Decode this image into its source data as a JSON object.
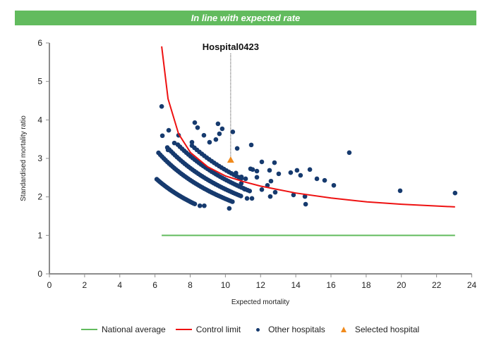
{
  "banner": {
    "text": "In line with expected rate"
  },
  "colors": {
    "banner": "#62bb5e",
    "national_average": "#62bb5e",
    "control_limit": "#ee1111",
    "other_hospitals": "#163a6e",
    "selected_hospital": "#f08a1c",
    "axis": "#8c8c8c"
  },
  "legend": {
    "national_average": "National average",
    "control_limit": "Control limit",
    "other_hospitals": "Other hospitals",
    "selected_hospital": "Selected hospital"
  },
  "chart_data": {
    "type": "scatter",
    "title": "In line with expected rate",
    "xlabel": "Expected mortality",
    "ylabel": "Standardised mortality ratio",
    "xlim": [
      0,
      24
    ],
    "ylim": [
      0,
      6
    ],
    "xticks": [
      0,
      2,
      4,
      6,
      8,
      10,
      12,
      14,
      16,
      18,
      20,
      22,
      24
    ],
    "yticks": [
      0,
      1,
      2,
      3,
      4,
      5,
      6
    ],
    "grid": false,
    "legend_position": "bottom",
    "selected_hospital": {
      "name": "Hospital0423",
      "x": 10.3,
      "y": 2.96
    },
    "national_average": {
      "y": 1,
      "x_range": [
        6.38,
        23.05
      ]
    },
    "control_limit": [
      [
        6.38,
        5.91
      ],
      [
        6.74,
        4.55
      ],
      [
        7.34,
        3.64
      ],
      [
        8.02,
        3.15
      ],
      [
        9.0,
        2.78
      ],
      [
        10.02,
        2.54
      ],
      [
        11.0,
        2.4
      ],
      [
        12.0,
        2.28
      ],
      [
        14.0,
        2.1
      ],
      [
        16.0,
        1.97
      ],
      [
        18.04,
        1.87
      ],
      [
        20.0,
        1.81
      ],
      [
        23.05,
        1.74
      ]
    ],
    "band_groups": [
      {
        "observed": 15,
        "e_from": 6.1,
        "e_to": 8.3,
        "step": 0.08
      },
      {
        "observed": 19.5,
        "e_from": 6.2,
        "e_to": 10.4,
        "step": 0.1
      },
      {
        "observed": 22,
        "e_from": 6.7,
        "e_to": 10.9,
        "step": 0.11
      },
      {
        "observed": 24.5,
        "e_from": 7.3,
        "e_to": 11.4,
        "step": 0.12
      },
      {
        "observed": 27,
        "e_from": 8.1,
        "e_to": 11.0,
        "step": 0.14
      }
    ],
    "other_hospitals": [
      [
        8.55,
        1.77
      ],
      [
        8.8,
        1.77
      ],
      [
        6.38,
        4.35
      ],
      [
        6.78,
        3.73
      ],
      [
        6.42,
        3.59
      ],
      [
        8.26,
        3.93
      ],
      [
        8.42,
        3.8
      ],
      [
        7.34,
        3.6
      ],
      [
        7.1,
        3.4
      ],
      [
        8.1,
        3.42
      ],
      [
        6.74,
        3.22
      ],
      [
        9.58,
        3.9
      ],
      [
        9.82,
        3.77
      ],
      [
        10.42,
        3.69
      ],
      [
        9.66,
        3.64
      ],
      [
        8.78,
        3.6
      ],
      [
        9.46,
        3.49
      ],
      [
        9.1,
        3.42
      ],
      [
        10.67,
        3.26
      ],
      [
        11.47,
        3.35
      ],
      [
        12.07,
        2.91
      ],
      [
        12.79,
        2.89
      ],
      [
        11.43,
        2.73
      ],
      [
        11.55,
        2.71
      ],
      [
        11.79,
        2.67
      ],
      [
        12.51,
        2.69
      ],
      [
        13.03,
        2.6
      ],
      [
        13.71,
        2.63
      ],
      [
        14.07,
        2.69
      ],
      [
        14.27,
        2.56
      ],
      [
        14.8,
        2.71
      ],
      [
        15.2,
        2.47
      ],
      [
        15.64,
        2.43
      ],
      [
        16.16,
        2.3
      ],
      [
        11.79,
        2.51
      ],
      [
        12.59,
        2.41
      ],
      [
        12.39,
        2.3
      ],
      [
        12.07,
        2.19
      ],
      [
        12.83,
        2.12
      ],
      [
        13.87,
        2.05
      ],
      [
        14.52,
        2.01
      ],
      [
        12.55,
        2.01
      ],
      [
        14.56,
        1.81
      ],
      [
        11.23,
        1.96
      ],
      [
        11.51,
        1.96
      ],
      [
        17.04,
        3.15
      ],
      [
        19.93,
        2.16
      ],
      [
        23.05,
        2.1
      ],
      [
        10.22,
        1.7
      ],
      [
        10.91,
        2.52
      ],
      [
        11.15,
        2.47
      ],
      [
        10.6,
        2.62
      ],
      [
        10.9,
        2.35
      ],
      [
        11.1,
        2.2
      ]
    ]
  }
}
